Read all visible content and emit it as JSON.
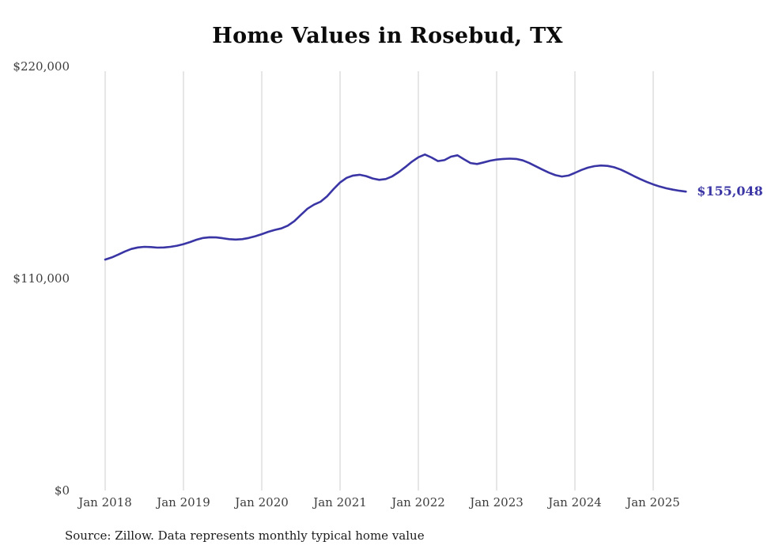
{
  "page": {
    "background": "#ffffff"
  },
  "chart_data": {
    "type": "line",
    "title": "Home Values in Rosebud, TX",
    "source": "Source: Zillow. Data represents monthly typical home value",
    "line_color": "#3a35a5",
    "grid_color": "#cccccc",
    "tick_color": "#3d3d3d",
    "end_label": "$155,048",
    "end_value": 155048,
    "ylim": [
      0,
      220000
    ],
    "grid": "vertical year gridlines only",
    "legend_position": "none",
    "x_ticks": [
      "Jan 2018",
      "Jan 2019",
      "Jan 2020",
      "Jan 2021",
      "Jan 2022",
      "Jan 2023",
      "Jan 2024",
      "Jan 2025"
    ],
    "y_ticks": [
      {
        "label": "$220,000",
        "value": 220000
      },
      {
        "label": "$110,000",
        "value": 110000
      },
      {
        "label": "$0",
        "value": 0
      }
    ],
    "series": [
      {
        "name": "Monthly typical home value",
        "start": "Jan 2018",
        "end": "Jun 2025",
        "frequency": "monthly",
        "values": [
          119800,
          120900,
          122400,
          124000,
          125300,
          126100,
          126400,
          126300,
          126000,
          126100,
          126400,
          127000,
          127800,
          128900,
          130100,
          131000,
          131400,
          131300,
          130900,
          130400,
          130200,
          130400,
          131000,
          131900,
          133000,
          134200,
          135200,
          136000,
          137400,
          139800,
          143000,
          146200,
          148300,
          149800,
          152600,
          156400,
          159800,
          162200,
          163400,
          163800,
          163100,
          161900,
          161200,
          161600,
          163000,
          165200,
          167800,
          170600,
          172900,
          174300,
          172800,
          170900,
          171400,
          173200,
          173900,
          171800,
          169900,
          169400,
          170200,
          171100,
          171700,
          172000,
          172200,
          172000,
          171300,
          169900,
          168200,
          166500,
          164900,
          163600,
          162900,
          163400,
          164800,
          166300,
          167500,
          168300,
          168600,
          168400,
          167700,
          166500,
          164900,
          163200,
          161600,
          160100,
          158800,
          157700,
          156800,
          156100,
          155500,
          155048
        ]
      }
    ]
  }
}
